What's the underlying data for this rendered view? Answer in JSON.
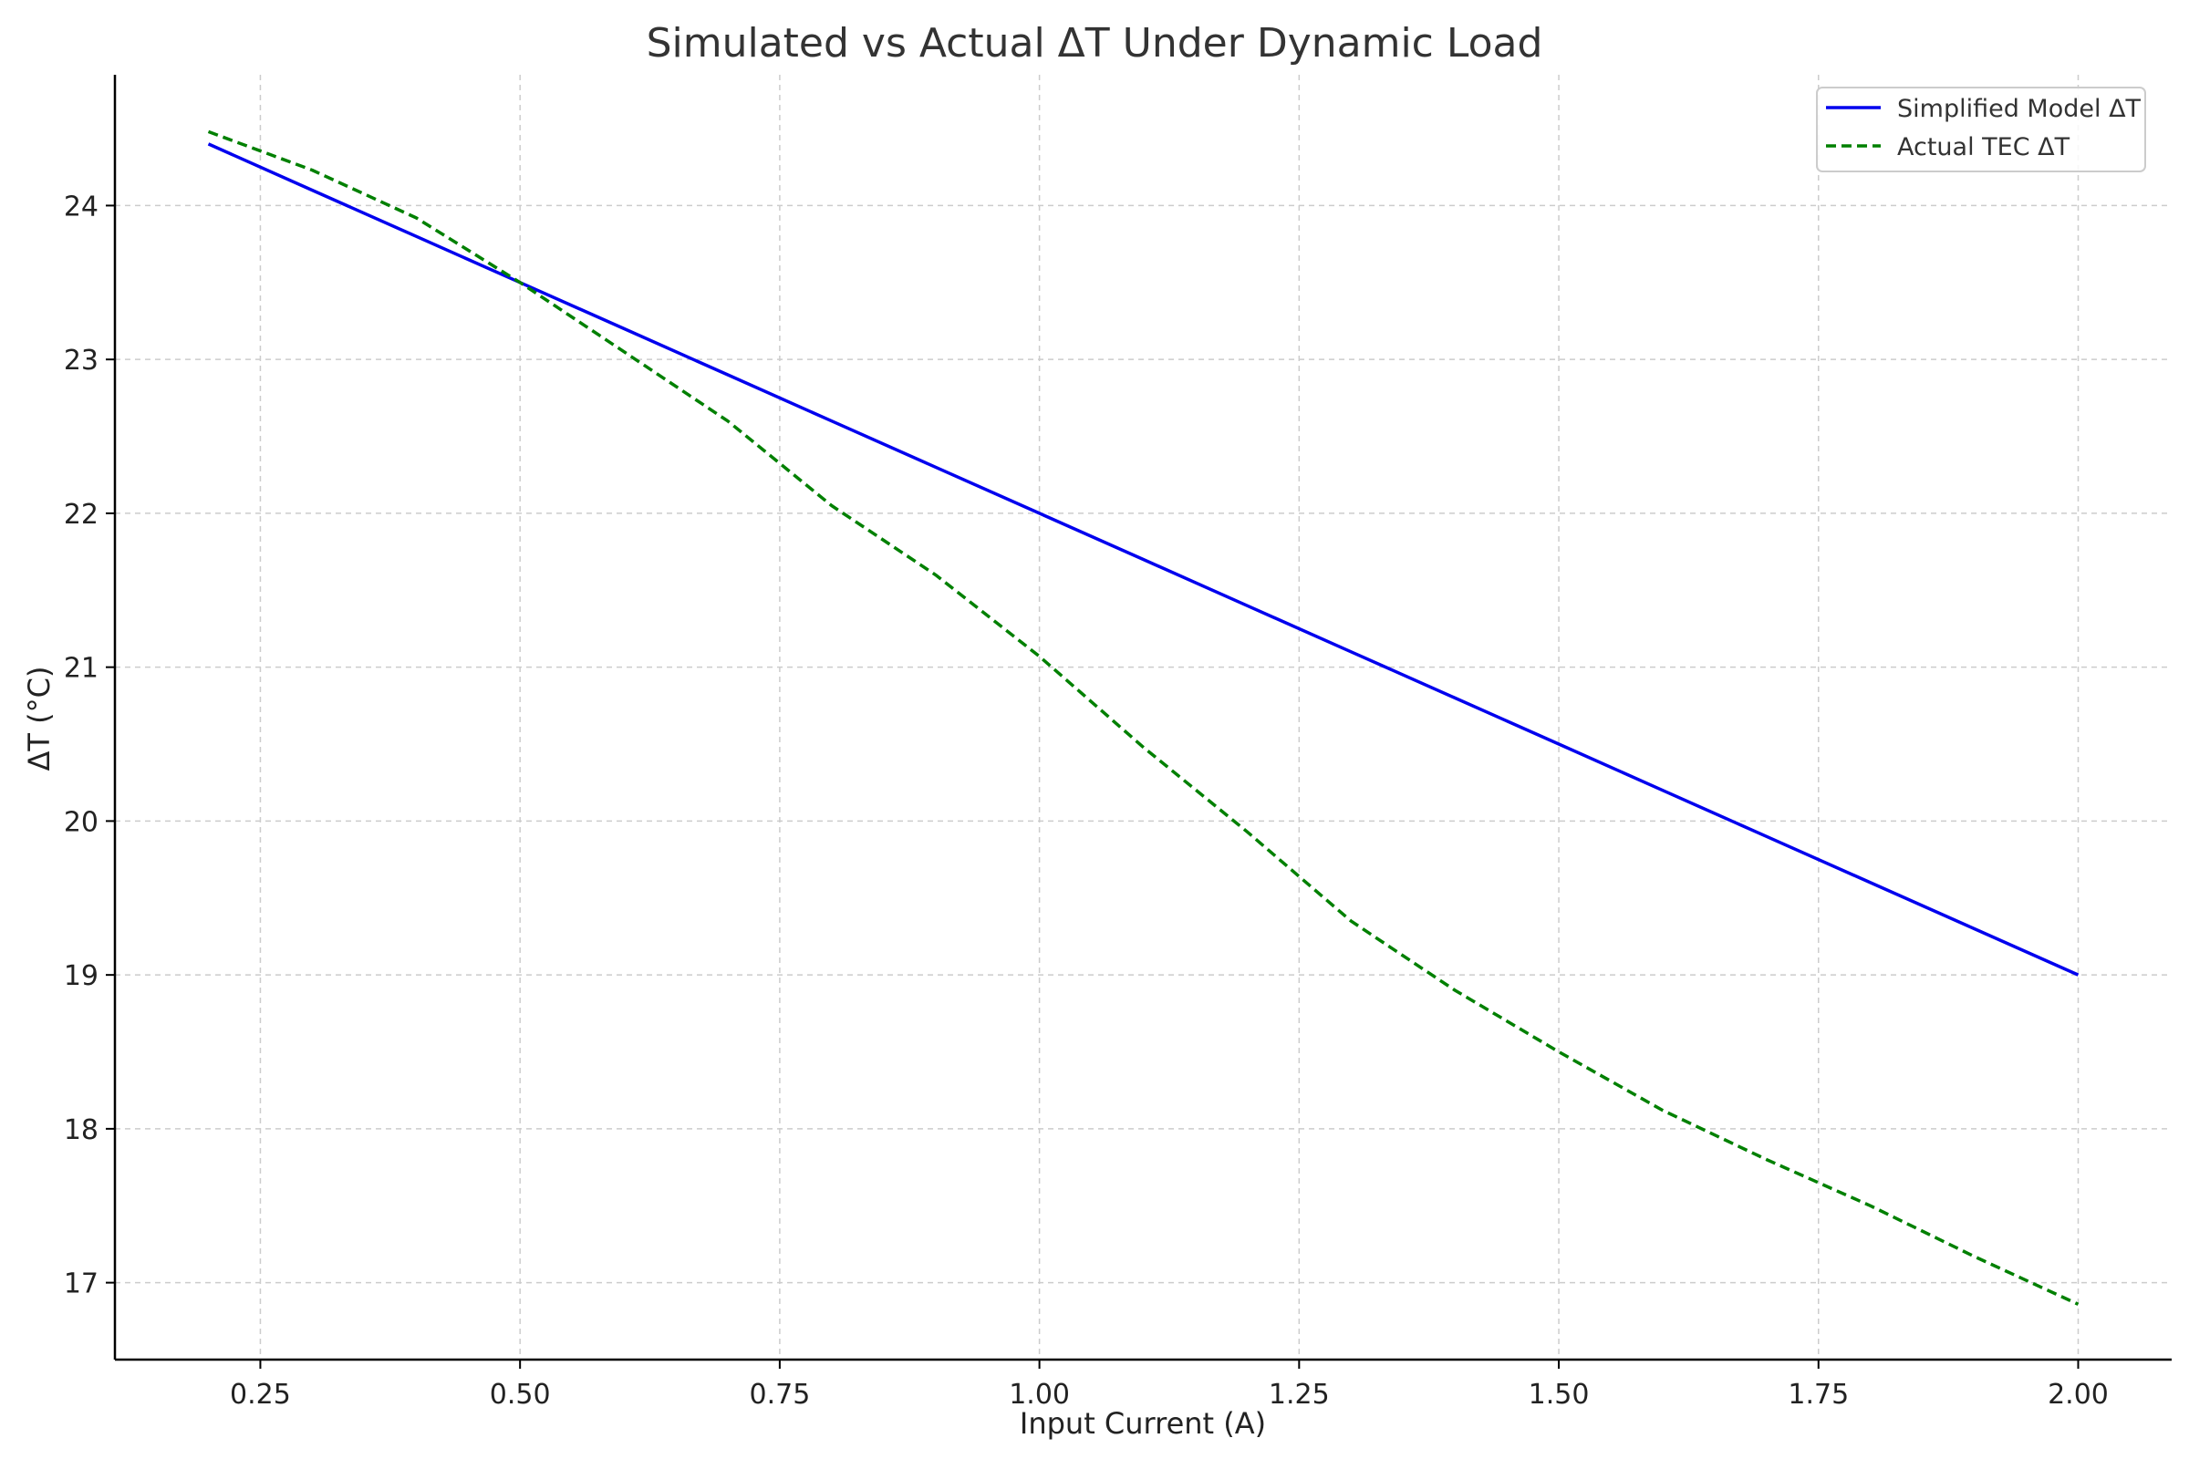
{
  "chart_data": {
    "type": "line",
    "title": "Simulated vs Actual ΔT Under Dynamic Load",
    "xlabel": "Input Current (A)",
    "ylabel": "ΔT (°C)",
    "xlim": [
      0.11,
      2.09
    ],
    "ylim": [
      16.5,
      24.85
    ],
    "xticks": [
      0.25,
      0.5,
      0.75,
      1.0,
      1.25,
      1.5,
      1.75,
      2.0
    ],
    "xtick_labels": [
      "0.25",
      "0.50",
      "0.75",
      "1.00",
      "1.25",
      "1.50",
      "1.75",
      "2.00"
    ],
    "yticks": [
      17,
      18,
      19,
      20,
      21,
      22,
      23,
      24
    ],
    "ytick_labels": [
      "17",
      "18",
      "19",
      "20",
      "21",
      "22",
      "23",
      "24"
    ],
    "grid": true,
    "legend_position": "top-right",
    "x": [
      0.2,
      0.3,
      0.4,
      0.5,
      0.6,
      0.7,
      0.8,
      0.9,
      1.0,
      1.1,
      1.2,
      1.3,
      1.4,
      1.5,
      1.6,
      1.7,
      1.8,
      1.9,
      2.0
    ],
    "series": [
      {
        "name": "Simplified Model ΔT",
        "color": "#0000ee",
        "style": "solid",
        "values": [
          24.4,
          24.1,
          23.8,
          23.5,
          23.2,
          22.9,
          22.6,
          22.3,
          22.0,
          21.7,
          21.4,
          21.1,
          20.8,
          20.5,
          20.2,
          19.9,
          19.6,
          19.3,
          19.0
        ]
      },
      {
        "name": "Actual TEC ΔT",
        "color": "#008000",
        "style": "dashed",
        "values": [
          24.48,
          24.23,
          23.92,
          23.5,
          23.05,
          22.6,
          22.05,
          21.6,
          21.07,
          20.48,
          19.93,
          19.35,
          18.9,
          18.5,
          18.12,
          17.8,
          17.5,
          17.17,
          16.86
        ]
      }
    ]
  }
}
